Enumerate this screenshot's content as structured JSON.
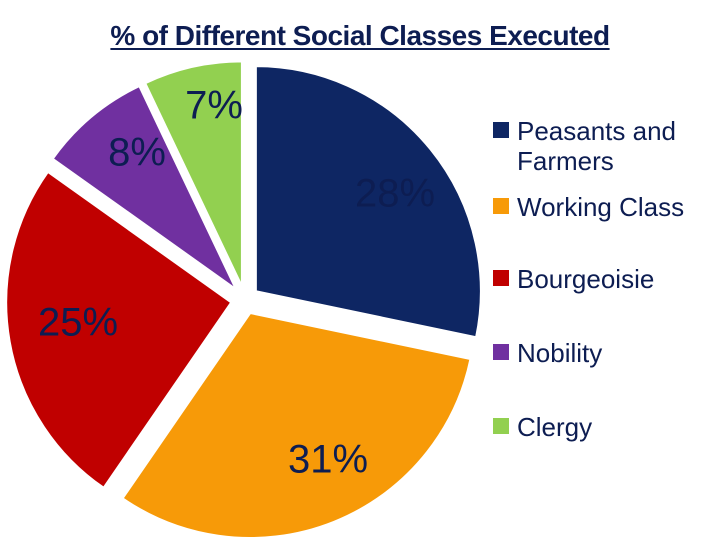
{
  "chart_data": {
    "type": "pie",
    "title": "% of Different Social Classes Executed",
    "slices": [
      {
        "name": "Peasants and Farmers",
        "value": 28,
        "label": "28%",
        "color": "#0e2663"
      },
      {
        "name": "Working Class",
        "value": 31,
        "label": "31%",
        "color": "#f79a08"
      },
      {
        "name": "Bourgeoisie",
        "value": 25,
        "label": "25%",
        "color": "#c00000"
      },
      {
        "name": "Nobility",
        "value": 8,
        "label": "8%",
        "color": "#7030a0"
      },
      {
        "name": "Clergy",
        "value": 7,
        "label": "7%",
        "color": "#92d050"
      }
    ],
    "legend_position": "right",
    "exploded": true
  }
}
